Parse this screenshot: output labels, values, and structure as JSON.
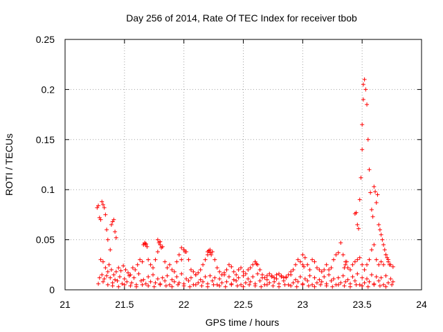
{
  "chart_data": {
    "type": "scatter",
    "title": "Day 256 of 2014, Rate Of TEC Index for receiver tbob",
    "xlabel": "GPS time / hours",
    "ylabel": "ROTI / TECUs",
    "xlim": [
      21,
      24
    ],
    "ylim": [
      0,
      0.25
    ],
    "xticks": [
      "21",
      "21.5",
      "22",
      "22.5",
      "23",
      "23.5",
      "24"
    ],
    "yticks": [
      "0",
      "0.05",
      "0.1",
      "0.15",
      "0.2",
      "0.25"
    ],
    "grid": true,
    "marker": "+",
    "color": "#ff0000",
    "series": [
      {
        "name": "ROTI",
        "x": [
          21.27,
          21.28,
          21.29,
          21.3,
          21.31,
          21.32,
          21.33,
          21.34,
          21.35,
          21.36,
          21.38,
          21.39,
          21.4,
          21.41,
          21.42,
          21.43,
          21.3,
          21.32,
          21.34,
          21.36,
          21.37,
          21.39,
          21.41,
          21.43,
          21.45,
          21.47,
          21.49,
          21.51,
          21.53,
          21.55,
          21.57,
          21.59,
          21.61,
          21.63,
          21.65,
          21.67,
          21.68,
          21.7,
          21.72,
          21.74,
          21.76,
          21.78,
          21.8,
          21.82,
          21.84,
          21.86,
          21.88,
          21.9,
          21.92,
          21.94,
          21.96,
          21.98,
          22.0,
          22.02,
          22.04,
          22.06,
          22.08,
          22.1,
          22.12,
          22.14,
          22.16,
          22.18,
          22.2,
          22.22,
          22.24,
          22.26,
          22.28,
          22.3,
          22.32,
          22.34,
          22.36,
          22.38,
          22.4,
          22.42,
          22.44,
          22.46,
          22.48,
          22.5,
          22.52,
          22.54,
          22.56,
          22.58,
          22.6,
          22.62,
          22.64,
          22.66,
          22.68,
          22.7,
          22.72,
          22.74,
          22.76,
          22.78,
          22.8,
          22.82,
          22.84,
          22.86,
          22.88,
          22.9,
          22.92,
          22.94,
          22.96,
          22.98,
          23.0,
          23.02,
          23.04,
          23.06,
          23.08,
          23.1,
          23.12,
          23.14,
          23.16,
          23.18,
          23.2,
          23.22,
          23.24,
          23.26,
          23.28,
          23.3,
          23.32,
          23.34,
          23.36,
          23.38,
          23.4,
          23.42,
          23.44,
          23.46,
          23.48,
          23.5,
          23.52,
          23.54,
          23.56,
          23.58,
          23.6,
          23.62,
          23.64,
          23.66,
          23.68,
          23.7,
          23.72,
          23.74,
          23.76,
          21.28,
          21.32,
          21.36,
          21.4,
          21.44,
          21.48,
          21.52,
          21.56,
          21.6,
          21.64,
          21.68,
          21.72,
          21.76,
          21.8,
          21.84,
          21.88,
          21.92,
          21.96,
          22.0,
          22.04,
          22.08,
          22.12,
          22.16,
          22.2,
          22.24,
          22.28,
          22.32,
          22.36,
          22.4,
          22.44,
          22.48,
          22.52,
          22.56,
          22.6,
          22.64,
          22.68,
          22.72,
          22.76,
          22.8,
          22.84,
          22.88,
          22.92,
          22.96,
          23.0,
          23.04,
          23.08,
          23.12,
          23.16,
          23.2,
          23.24,
          23.28,
          23.32,
          23.36,
          23.4,
          23.44,
          23.48,
          23.52,
          23.56,
          23.6,
          23.64,
          23.68,
          23.72,
          23.76,
          21.29,
          21.31,
          21.33,
          21.35,
          21.38,
          21.42,
          21.46,
          21.5,
          21.54,
          21.58,
          21.62,
          21.66,
          21.7,
          21.74,
          21.78,
          21.82,
          21.86,
          21.9,
          21.94,
          21.98,
          22.02,
          22.06,
          22.1,
          22.14,
          22.18,
          22.22,
          22.26,
          22.3,
          22.34,
          22.38,
          22.42,
          22.46,
          22.5,
          22.54,
          22.58,
          22.62,
          22.66,
          22.7,
          22.74,
          22.78,
          22.82,
          22.86,
          22.9,
          22.94,
          22.98,
          23.02,
          23.06,
          23.1,
          23.14,
          23.18,
          23.22,
          23.26,
          23.3,
          23.34,
          23.38,
          23.42,
          23.46,
          23.5,
          23.54,
          23.58,
          23.62,
          23.66,
          23.7,
          23.74,
          21.4,
          21.45,
          21.5,
          21.55,
          21.6,
          21.65,
          21.7,
          21.75,
          21.8,
          21.85,
          21.9,
          21.95,
          22.0,
          22.05,
          22.1,
          22.15,
          22.2,
          22.25,
          22.3,
          22.35,
          22.4,
          22.45,
          22.5,
          22.55,
          22.6,
          22.65,
          22.7,
          22.75,
          22.8,
          22.85,
          22.9,
          22.95,
          23.0,
          23.05,
          23.1,
          23.15,
          23.2,
          23.25,
          23.3,
          23.35,
          23.4,
          23.45,
          23.5,
          23.55,
          23.6,
          23.65,
          23.7,
          23.75,
          21.66,
          21.67,
          21.68,
          21.69,
          21.78,
          21.79,
          21.8,
          21.81,
          21.98,
          22.0,
          22.01,
          22.2,
          22.21,
          22.22,
          22.23,
          22.6,
          22.61,
          23.0,
          23.01,
          23.35,
          23.36,
          23.37,
          23.44,
          23.45,
          23.46,
          23.47,
          23.48,
          23.49,
          23.5,
          23.5,
          23.51,
          23.51,
          23.52,
          23.53,
          23.54,
          23.55,
          23.56,
          23.57,
          23.58,
          23.59,
          23.6,
          23.61,
          23.62,
          23.63,
          23.64,
          23.65,
          23.66,
          23.67,
          23.68,
          23.69,
          23.7,
          23.71,
          23.72,
          23.73
        ],
        "y": [
          0.082,
          0.084,
          0.072,
          0.07,
          0.088,
          0.085,
          0.082,
          0.075,
          0.06,
          0.05,
          0.04,
          0.065,
          0.068,
          0.07,
          0.058,
          0.052,
          0.03,
          0.028,
          0.022,
          0.018,
          0.025,
          0.02,
          0.015,
          0.018,
          0.022,
          0.019,
          0.024,
          0.02,
          0.017,
          0.015,
          0.022,
          0.02,
          0.025,
          0.03,
          0.028,
          0.046,
          0.045,
          0.03,
          0.025,
          0.022,
          0.03,
          0.038,
          0.048,
          0.043,
          0.028,
          0.022,
          0.025,
          0.02,
          0.018,
          0.028,
          0.035,
          0.03,
          0.04,
          0.038,
          0.03,
          0.02,
          0.018,
          0.015,
          0.017,
          0.02,
          0.025,
          0.03,
          0.035,
          0.04,
          0.038,
          0.03,
          0.022,
          0.018,
          0.015,
          0.017,
          0.02,
          0.025,
          0.023,
          0.018,
          0.015,
          0.02,
          0.022,
          0.018,
          0.016,
          0.02,
          0.022,
          0.025,
          0.028,
          0.025,
          0.02,
          0.015,
          0.012,
          0.014,
          0.016,
          0.013,
          0.012,
          0.015,
          0.016,
          0.014,
          0.012,
          0.013,
          0.015,
          0.018,
          0.02,
          0.025,
          0.03,
          0.028,
          0.035,
          0.032,
          0.025,
          0.02,
          0.03,
          0.028,
          0.022,
          0.02,
          0.018,
          0.02,
          0.025,
          0.02,
          0.022,
          0.03,
          0.035,
          0.037,
          0.047,
          0.035,
          0.028,
          0.022,
          0.02,
          0.025,
          0.028,
          0.03,
          0.032,
          0.025,
          0.02,
          0.025,
          0.03,
          0.04,
          0.045,
          0.03,
          0.025,
          0.028,
          0.025,
          0.035,
          0.03,
          0.025,
          0.023,
          0.006,
          0.008,
          0.005,
          0.007,
          0.009,
          0.006,
          0.008,
          0.007,
          0.005,
          0.009,
          0.006,
          0.008,
          0.007,
          0.006,
          0.009,
          0.005,
          0.008,
          0.007,
          0.006,
          0.009,
          0.005,
          0.007,
          0.008,
          0.006,
          0.009,
          0.005,
          0.007,
          0.008,
          0.006,
          0.009,
          0.005,
          0.007,
          0.008,
          0.006,
          0.009,
          0.005,
          0.007,
          0.008,
          0.006,
          0.009,
          0.005,
          0.007,
          0.008,
          0.006,
          0.009,
          0.005,
          0.007,
          0.008,
          0.006,
          0.009,
          0.005,
          0.007,
          0.008,
          0.006,
          0.009,
          0.005,
          0.007,
          0.008,
          0.006,
          0.009,
          0.005,
          0.007,
          0.008,
          0.012,
          0.015,
          0.011,
          0.014,
          0.012,
          0.01,
          0.013,
          0.011,
          0.014,
          0.012,
          0.016,
          0.01,
          0.013,
          0.015,
          0.011,
          0.012,
          0.014,
          0.01,
          0.013,
          0.016,
          0.011,
          0.012,
          0.015,
          0.01,
          0.013,
          0.014,
          0.012,
          0.011,
          0.015,
          0.013,
          0.01,
          0.012,
          0.014,
          0.011,
          0.013,
          0.016,
          0.012,
          0.01,
          0.014,
          0.011,
          0.013,
          0.012,
          0.015,
          0.01,
          0.013,
          0.011,
          0.014,
          0.012,
          0.01,
          0.013,
          0.015,
          0.011,
          0.012,
          0.014,
          0.01,
          0.013,
          0.016,
          0.012,
          0.011,
          0.015,
          0.013,
          0.012,
          0.014,
          0.011,
          0.004,
          0.003,
          0.005,
          0.004,
          0.003,
          0.005,
          0.004,
          0.003,
          0.005,
          0.004,
          0.003,
          0.005,
          0.004,
          0.003,
          0.005,
          0.004,
          0.003,
          0.005,
          0.004,
          0.003,
          0.005,
          0.004,
          0.003,
          0.005,
          0.004,
          0.003,
          0.005,
          0.004,
          0.003,
          0.005,
          0.004,
          0.003,
          0.005,
          0.004,
          0.003,
          0.005,
          0.004,
          0.003,
          0.005,
          0.004,
          0.003,
          0.005,
          0.004,
          0.003,
          0.005,
          0.004,
          0.003,
          0.005,
          0.045,
          0.047,
          0.046,
          0.043,
          0.05,
          0.047,
          0.045,
          0.042,
          0.042,
          0.04,
          0.038,
          0.038,
          0.039,
          0.037,
          0.035,
          0.028,
          0.026,
          0.025,
          0.023,
          0.022,
          0.025,
          0.028,
          0.076,
          0.077,
          0.065,
          0.061,
          0.09,
          0.112,
          0.14,
          0.165,
          0.19,
          0.205,
          0.21,
          0.2,
          0.185,
          0.15,
          0.12,
          0.097,
          0.08,
          0.073,
          0.103,
          0.098,
          0.087,
          0.095,
          0.065,
          0.06,
          0.055,
          0.05,
          0.045,
          0.04,
          0.035,
          0.032,
          0.028,
          0.025
        ]
      }
    ]
  }
}
